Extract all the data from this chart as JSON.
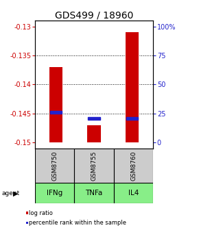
{
  "title": "GDS499 / 18960",
  "samples": [
    "GSM8750",
    "GSM8755",
    "GSM8760"
  ],
  "agents": [
    "IFNg",
    "TNFa",
    "IL4"
  ],
  "log_ratios": [
    -0.137,
    -0.147,
    -0.131
  ],
  "percentile_ranks": [
    26.0,
    21.0,
    21.0
  ],
  "bar_bottom": -0.15,
  "ylim": [
    -0.151,
    -0.129
  ],
  "yticks_left": [
    -0.15,
    -0.145,
    -0.14,
    -0.135,
    -0.13
  ],
  "ytick_labels_left": [
    "-0.15",
    "-0.145",
    "-0.14",
    "-0.135",
    "-0.13"
  ],
  "yticks_right": [
    0,
    25,
    50,
    75,
    100
  ],
  "ytick_labels_right": [
    "0",
    "25",
    "50",
    "75",
    "100%"
  ],
  "bar_color": "#cc0000",
  "percentile_color": "#2222cc",
  "sample_box_color": "#cccccc",
  "agent_box_color": "#88ee88",
  "legend_color_logratio": "#cc0000",
  "legend_color_percentile": "#2222cc",
  "title_fontsize": 10,
  "axis_left_color": "#cc0000",
  "axis_right_color": "#2222cc",
  "bar_width": 0.35
}
